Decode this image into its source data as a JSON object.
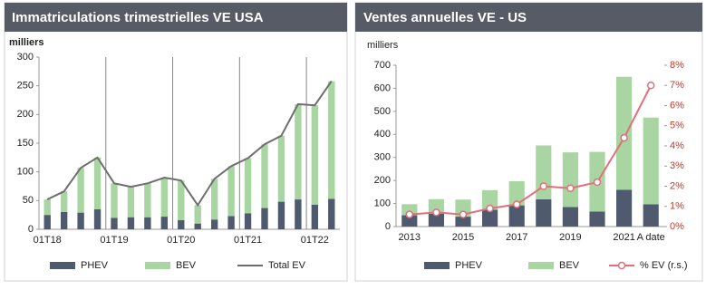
{
  "chart_data": [
    {
      "type": "bar",
      "stacked": true,
      "title": "Immatriculations trimestrielles VE USA",
      "y_label": "milliers",
      "categories": [
        "01T18",
        null,
        null,
        null,
        "01T19",
        null,
        null,
        null,
        "01T20",
        null,
        null,
        null,
        "01T21",
        null,
        null,
        null,
        "01T22",
        null
      ],
      "series": [
        {
          "name": "PHEV",
          "type": "bar",
          "color": "#4f5a6e",
          "values": [
            25,
            30,
            29,
            35,
            20,
            21,
            21,
            22,
            16,
            10,
            17,
            23,
            28,
            37,
            48,
            52,
            43,
            53
          ]
        },
        {
          "name": "BEV",
          "type": "bar",
          "color": "#a8d5a2",
          "values": [
            27,
            36,
            78,
            90,
            60,
            53,
            59,
            68,
            69,
            32,
            71,
            87,
            96,
            111,
            115,
            166,
            173,
            205
          ]
        },
        {
          "name": "Total EV",
          "type": "line",
          "color": "#6e6e6e",
          "values": [
            52,
            66,
            107,
            125,
            80,
            74,
            80,
            90,
            85,
            42,
            88,
            110,
            124,
            148,
            163,
            218,
            216,
            258
          ]
        }
      ],
      "ylim": [
        0,
        300
      ],
      "yticks": [
        0,
        50,
        100,
        150,
        200,
        250,
        300
      ],
      "legend": "bottom"
    },
    {
      "type": "bar",
      "stacked": true,
      "title": "Ventes annuelles VE - US",
      "y_label": "milliers",
      "categories": [
        "2013",
        null,
        "2015",
        null,
        "2017",
        null,
        "2019",
        null,
        "2021",
        "A date"
      ],
      "series": [
        {
          "name": "PHEV",
          "type": "bar",
          "color": "#4f5a6e",
          "values": [
            49,
            56,
            43,
            73,
            92,
            118,
            85,
            65,
            160,
            97
          ]
        },
        {
          "name": "BEV",
          "type": "bar",
          "color": "#a8d5a2",
          "values": [
            48,
            63,
            74,
            85,
            105,
            234,
            237,
            259,
            490,
            376
          ]
        },
        {
          "name": "% EV (r.s.)",
          "type": "line",
          "axis": "y2",
          "color": "#e0707a",
          "values": [
            0.6,
            0.7,
            0.6,
            0.9,
            1.1,
            2.0,
            1.9,
            2.2,
            4.4,
            7.0
          ]
        }
      ],
      "ylim": [
        0,
        700
      ],
      "yticks": [
        0,
        100,
        200,
        300,
        400,
        500,
        600,
        700
      ],
      "y2lim": [
        0,
        8
      ],
      "y2ticks": [
        {
          "value": 0,
          "label": "0%"
        },
        {
          "value": 1,
          "label": "1%"
        },
        {
          "value": 2,
          "label": "2%"
        },
        {
          "value": 3,
          "label": "3%"
        },
        {
          "value": 4,
          "label": "4%"
        },
        {
          "value": 5,
          "label": "5%"
        },
        {
          "value": 6,
          "label": "6%"
        },
        {
          "value": 7,
          "label": "7%"
        },
        {
          "value": 8,
          "label": "8%"
        }
      ],
      "y2color": "#c0392b",
      "legend": "bottom"
    }
  ]
}
